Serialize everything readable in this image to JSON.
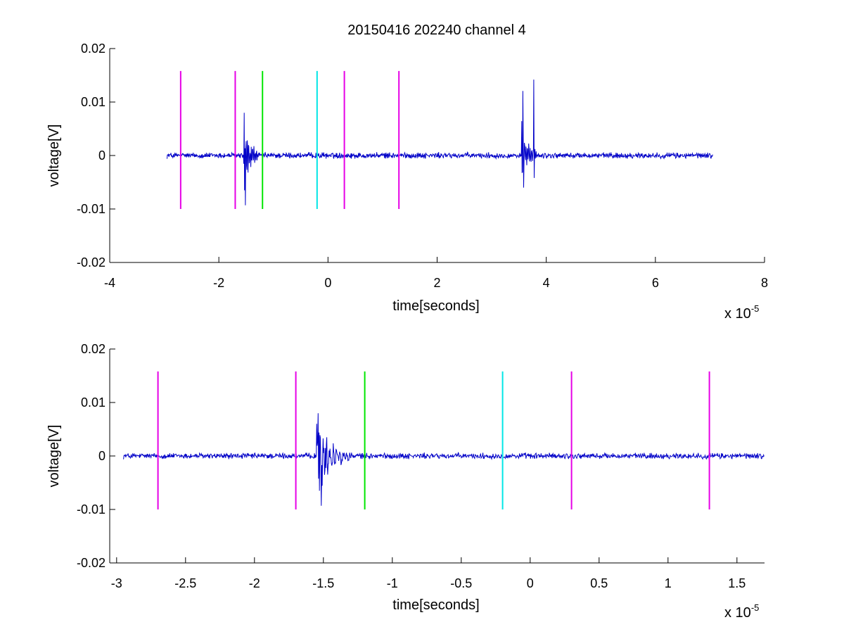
{
  "chart_data": [
    {
      "type": "line",
      "title": "20150416 202240 channel 4",
      "xlabel": "time[seconds]",
      "ylabel": "voltage[V]",
      "x_multiplier": {
        "base": "x 10",
        "exponent": "-5"
      },
      "xlim": [
        -4,
        8
      ],
      "ylim": [
        -0.02,
        0.02
      ],
      "x_ticks": [
        -4,
        -2,
        0,
        2,
        4,
        6,
        8
      ],
      "x_tick_labels": [
        "-4",
        "-2",
        "0",
        "2",
        "4",
        "6",
        "8"
      ],
      "y_ticks": [
        -0.02,
        -0.01,
        0,
        0.01,
        0.02
      ],
      "y_tick_labels": [
        "-0.02",
        "-0.01",
        "0",
        "0.01",
        "0.02"
      ],
      "grid": false,
      "signal": {
        "color": "#0000c8",
        "x_start": -2.95,
        "x_end": 7.05,
        "baseline": 0,
        "noise_amplitude": 0.0004,
        "bursts": [
          {
            "x_start": -1.55,
            "x_end": -1.3,
            "amplitude": 0.008,
            "peak_high": 0.008,
            "peak_low": -0.0093
          },
          {
            "x_start": 3.55,
            "x_end": 3.82,
            "amplitude": 0.007,
            "peak_high": 0.0142,
            "peak_low": -0.006
          }
        ]
      },
      "markers": [
        {
          "x": -2.7,
          "y_range": [
            -0.01,
            0.0158
          ],
          "color": "#e600e6"
        },
        {
          "x": -1.7,
          "y_range": [
            -0.01,
            0.0158
          ],
          "color": "#e600e6"
        },
        {
          "x": -1.2,
          "y_range": [
            -0.01,
            0.0158
          ],
          "color": "#00e600"
        },
        {
          "x": -0.2,
          "y_range": [
            -0.01,
            0.0158
          ],
          "color": "#00e6e6"
        },
        {
          "x": 0.3,
          "y_range": [
            -0.01,
            0.0158
          ],
          "color": "#e600e6"
        },
        {
          "x": 1.3,
          "y_range": [
            -0.01,
            0.0158
          ],
          "color": "#e600e6"
        }
      ]
    },
    {
      "type": "line",
      "title": "",
      "xlabel": "time[seconds]",
      "ylabel": "voltage[V]",
      "x_multiplier": {
        "base": "x 10",
        "exponent": "-5"
      },
      "xlim": [
        -3.05,
        1.7
      ],
      "ylim": [
        -0.02,
        0.02
      ],
      "x_ticks": [
        -3,
        -2.5,
        -2,
        -1.5,
        -1,
        -0.5,
        0,
        0.5,
        1,
        1.5
      ],
      "x_tick_labels": [
        "-3",
        "-2.5",
        "-2",
        "-1.5",
        "-1",
        "-0.5",
        "0",
        "0.5",
        "1",
        "1.5"
      ],
      "y_ticks": [
        -0.02,
        -0.01,
        0,
        0.01,
        0.02
      ],
      "y_tick_labels": [
        "-0.02",
        "-0.01",
        "0",
        "0.01",
        "0.02"
      ],
      "grid": false,
      "signal": {
        "color": "#0000c8",
        "x_start": -2.95,
        "x_end": 1.7,
        "baseline": 0,
        "noise_amplitude": 0.0004,
        "bursts": [
          {
            "x_start": -1.55,
            "x_end": -1.3,
            "amplitude": 0.008,
            "peak_high": 0.008,
            "peak_low": -0.0093
          }
        ]
      },
      "markers": [
        {
          "x": -2.7,
          "y_range": [
            -0.01,
            0.0158
          ],
          "color": "#e600e6"
        },
        {
          "x": -1.7,
          "y_range": [
            -0.01,
            0.0158
          ],
          "color": "#e600e6"
        },
        {
          "x": -1.2,
          "y_range": [
            -0.01,
            0.0158
          ],
          "color": "#00e600"
        },
        {
          "x": -0.2,
          "y_range": [
            -0.01,
            0.0158
          ],
          "color": "#00e6e6"
        },
        {
          "x": 0.3,
          "y_range": [
            -0.01,
            0.0158
          ],
          "color": "#e600e6"
        },
        {
          "x": 1.3,
          "y_range": [
            -0.01,
            0.0158
          ],
          "color": "#e600e6"
        }
      ]
    }
  ]
}
